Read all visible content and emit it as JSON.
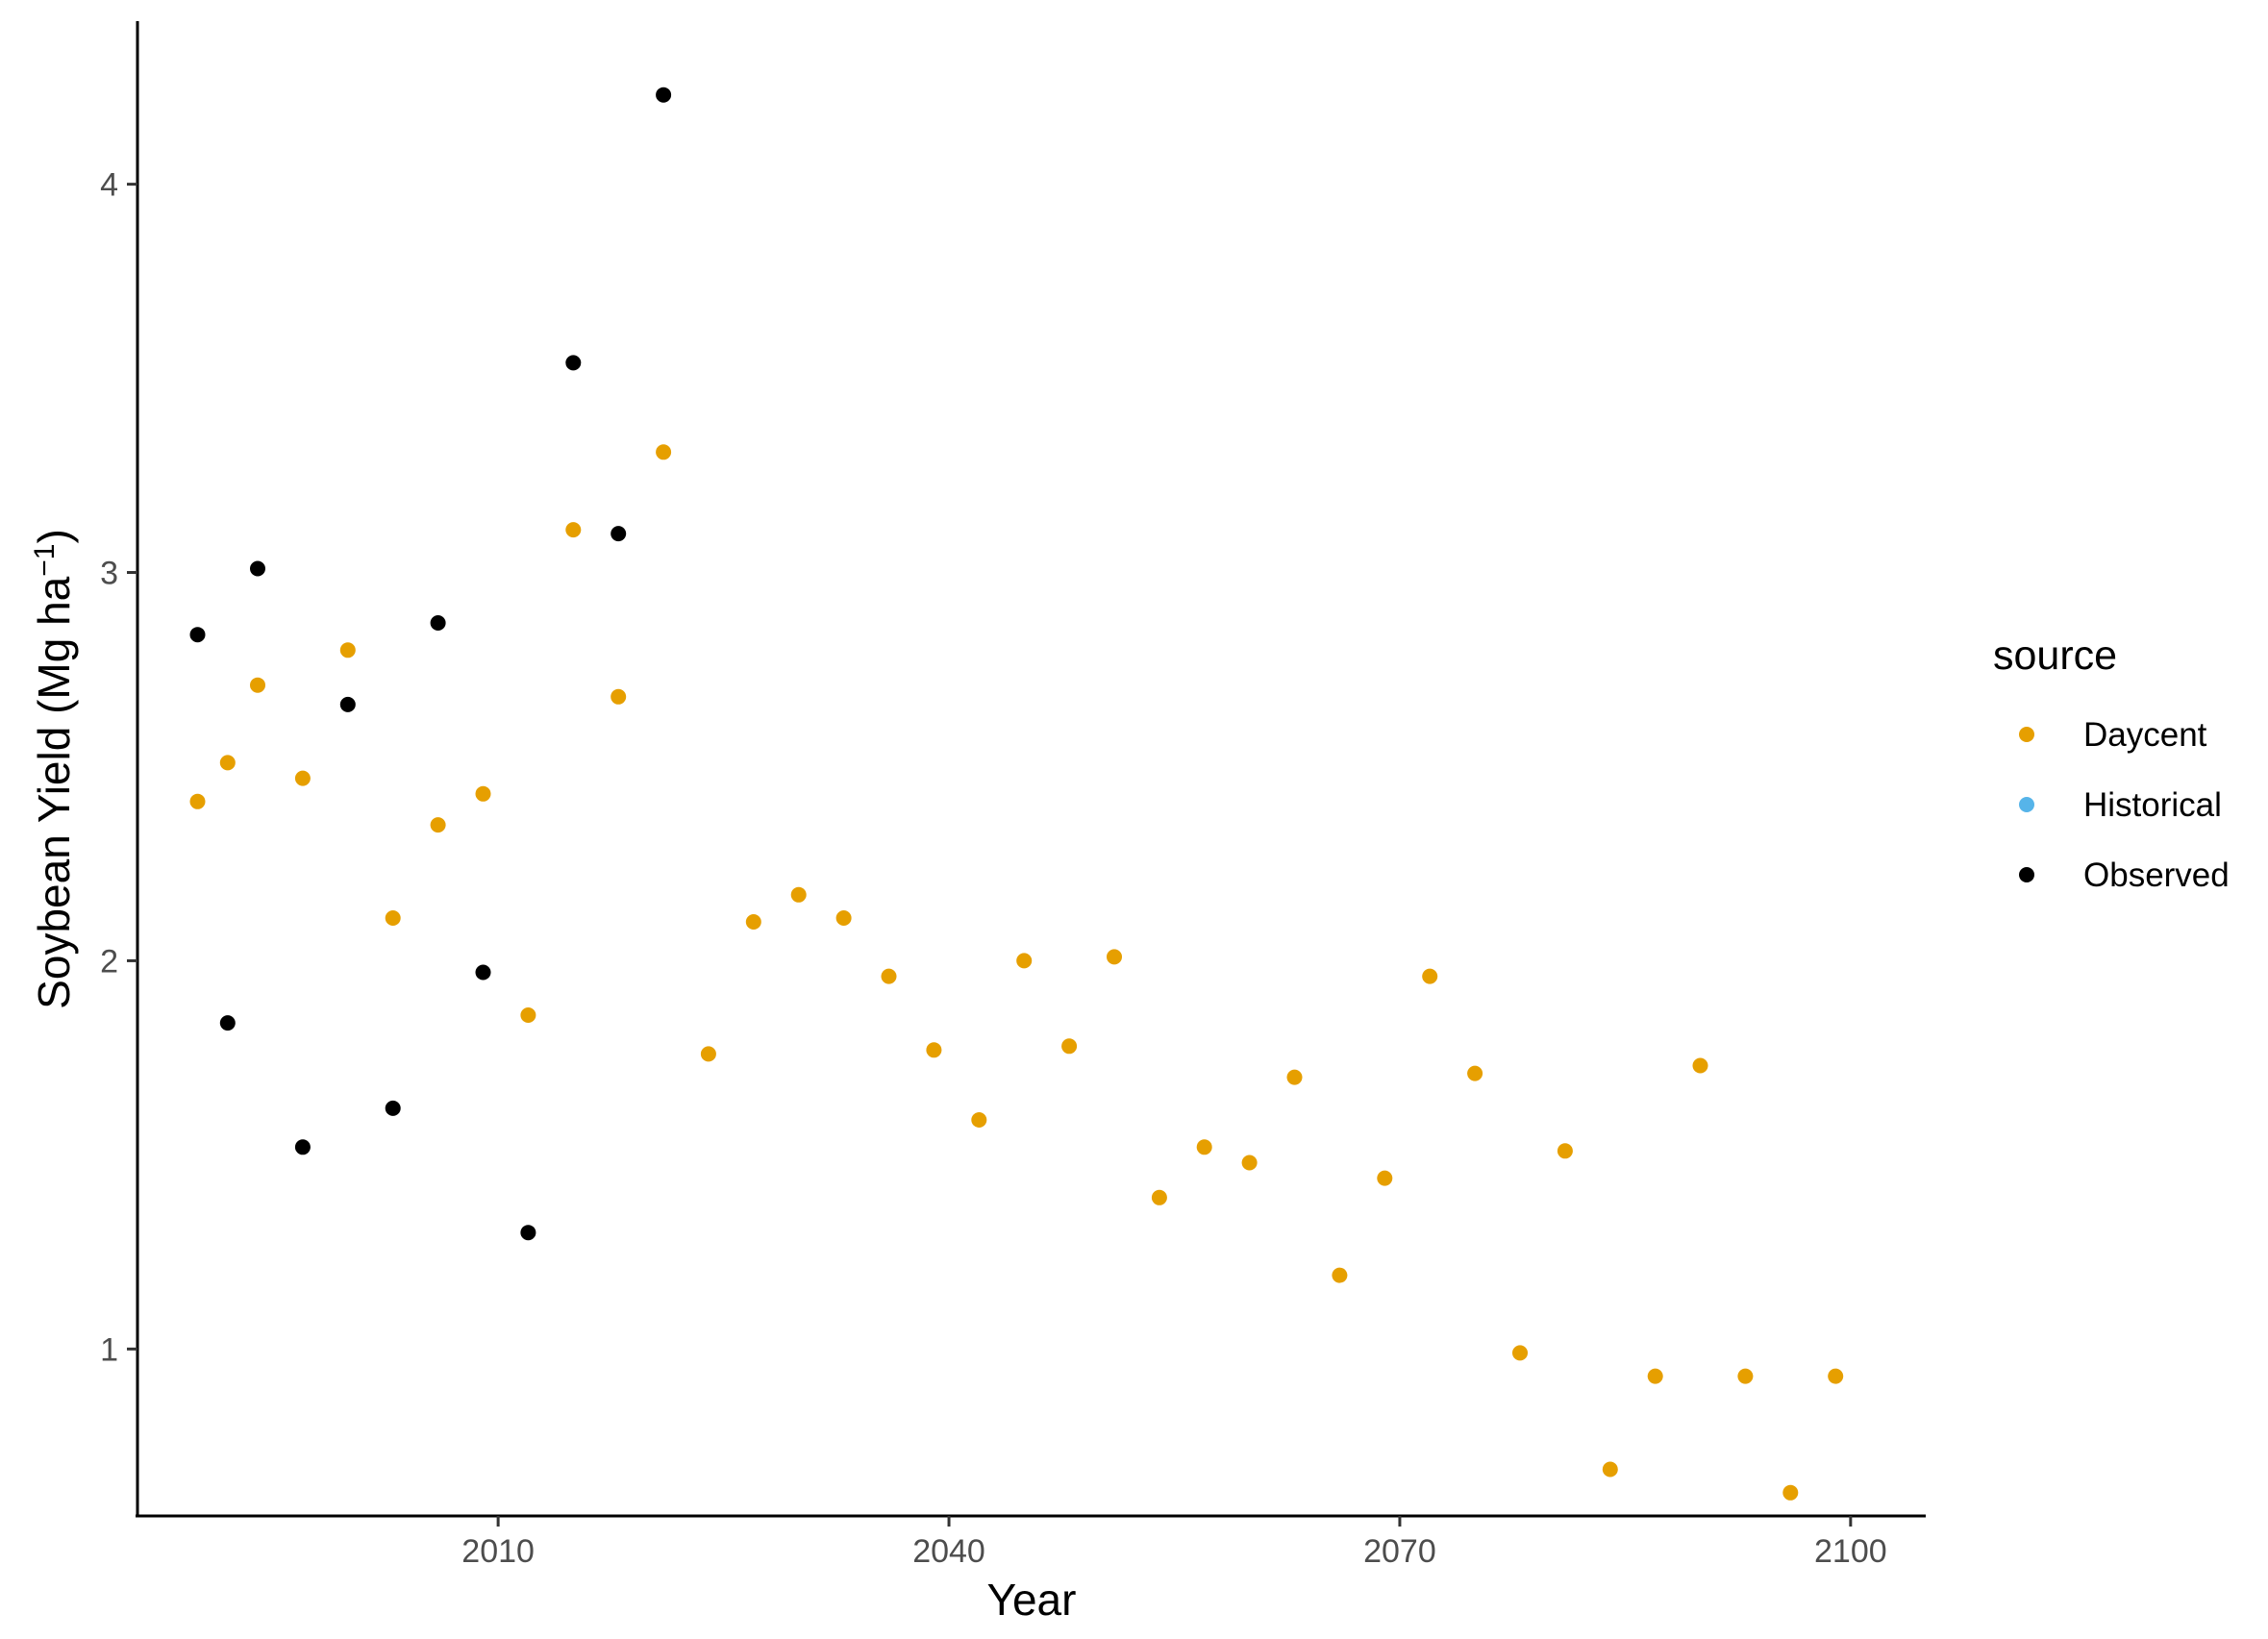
{
  "chart_data": {
    "type": "scatter",
    "xlabel": "Year",
    "ylabel": {
      "main": "Soybean Yield (Mg ha",
      "sup": "−1",
      "end": ")"
    },
    "xlim": [
      1986,
      2105
    ],
    "ylim": [
      0.57,
      4.42
    ],
    "x_ticks": [
      2010,
      2040,
      2070,
      2100
    ],
    "y_ticks": [
      1,
      2,
      3,
      4
    ],
    "grid": false,
    "legend": {
      "title": "source",
      "position": "right"
    },
    "series": [
      {
        "name": "Daycent",
        "color": "#E69F00",
        "points": [
          [
            1990,
            2.41
          ],
          [
            1992,
            2.51
          ],
          [
            1994,
            2.71
          ],
          [
            1997,
            2.47
          ],
          [
            2000,
            2.8
          ],
          [
            2003,
            2.11
          ],
          [
            2006,
            2.35
          ],
          [
            2009,
            2.43
          ],
          [
            2012,
            1.86
          ],
          [
            2015,
            3.11
          ],
          [
            2018,
            2.68
          ],
          [
            2021,
            3.31
          ],
          [
            2024,
            1.76
          ],
          [
            2027,
            2.1
          ],
          [
            2030,
            2.17
          ],
          [
            2033,
            2.11
          ],
          [
            2036,
            1.96
          ],
          [
            2039,
            1.77
          ],
          [
            2042,
            1.59
          ],
          [
            2045,
            2.0
          ],
          [
            2048,
            1.78
          ],
          [
            2051,
            2.01
          ],
          [
            2054,
            1.39
          ],
          [
            2057,
            1.52
          ],
          [
            2060,
            1.48
          ],
          [
            2063,
            1.7
          ],
          [
            2066,
            1.19
          ],
          [
            2069,
            1.44
          ],
          [
            2072,
            1.96
          ],
          [
            2075,
            1.71
          ],
          [
            2078,
            0.99
          ],
          [
            2081,
            1.51
          ],
          [
            2084,
            0.69
          ],
          [
            2087,
            0.93
          ],
          [
            2090,
            1.73
          ],
          [
            2093,
            0.93
          ],
          [
            2096,
            0.63
          ],
          [
            2099,
            0.93
          ]
        ]
      },
      {
        "name": "Historical",
        "color": "#56B4E9",
        "points": []
      },
      {
        "name": "Observed",
        "color": "#000000",
        "points": [
          [
            1990,
            2.84
          ],
          [
            1992,
            1.84
          ],
          [
            1994,
            3.01
          ],
          [
            1997,
            1.52
          ],
          [
            2000,
            2.66
          ],
          [
            2003,
            1.62
          ],
          [
            2006,
            2.87
          ],
          [
            2009,
            1.97
          ],
          [
            2012,
            1.3
          ],
          [
            2015,
            3.54
          ],
          [
            2018,
            3.1
          ],
          [
            2021,
            4.23
          ]
        ]
      }
    ]
  }
}
